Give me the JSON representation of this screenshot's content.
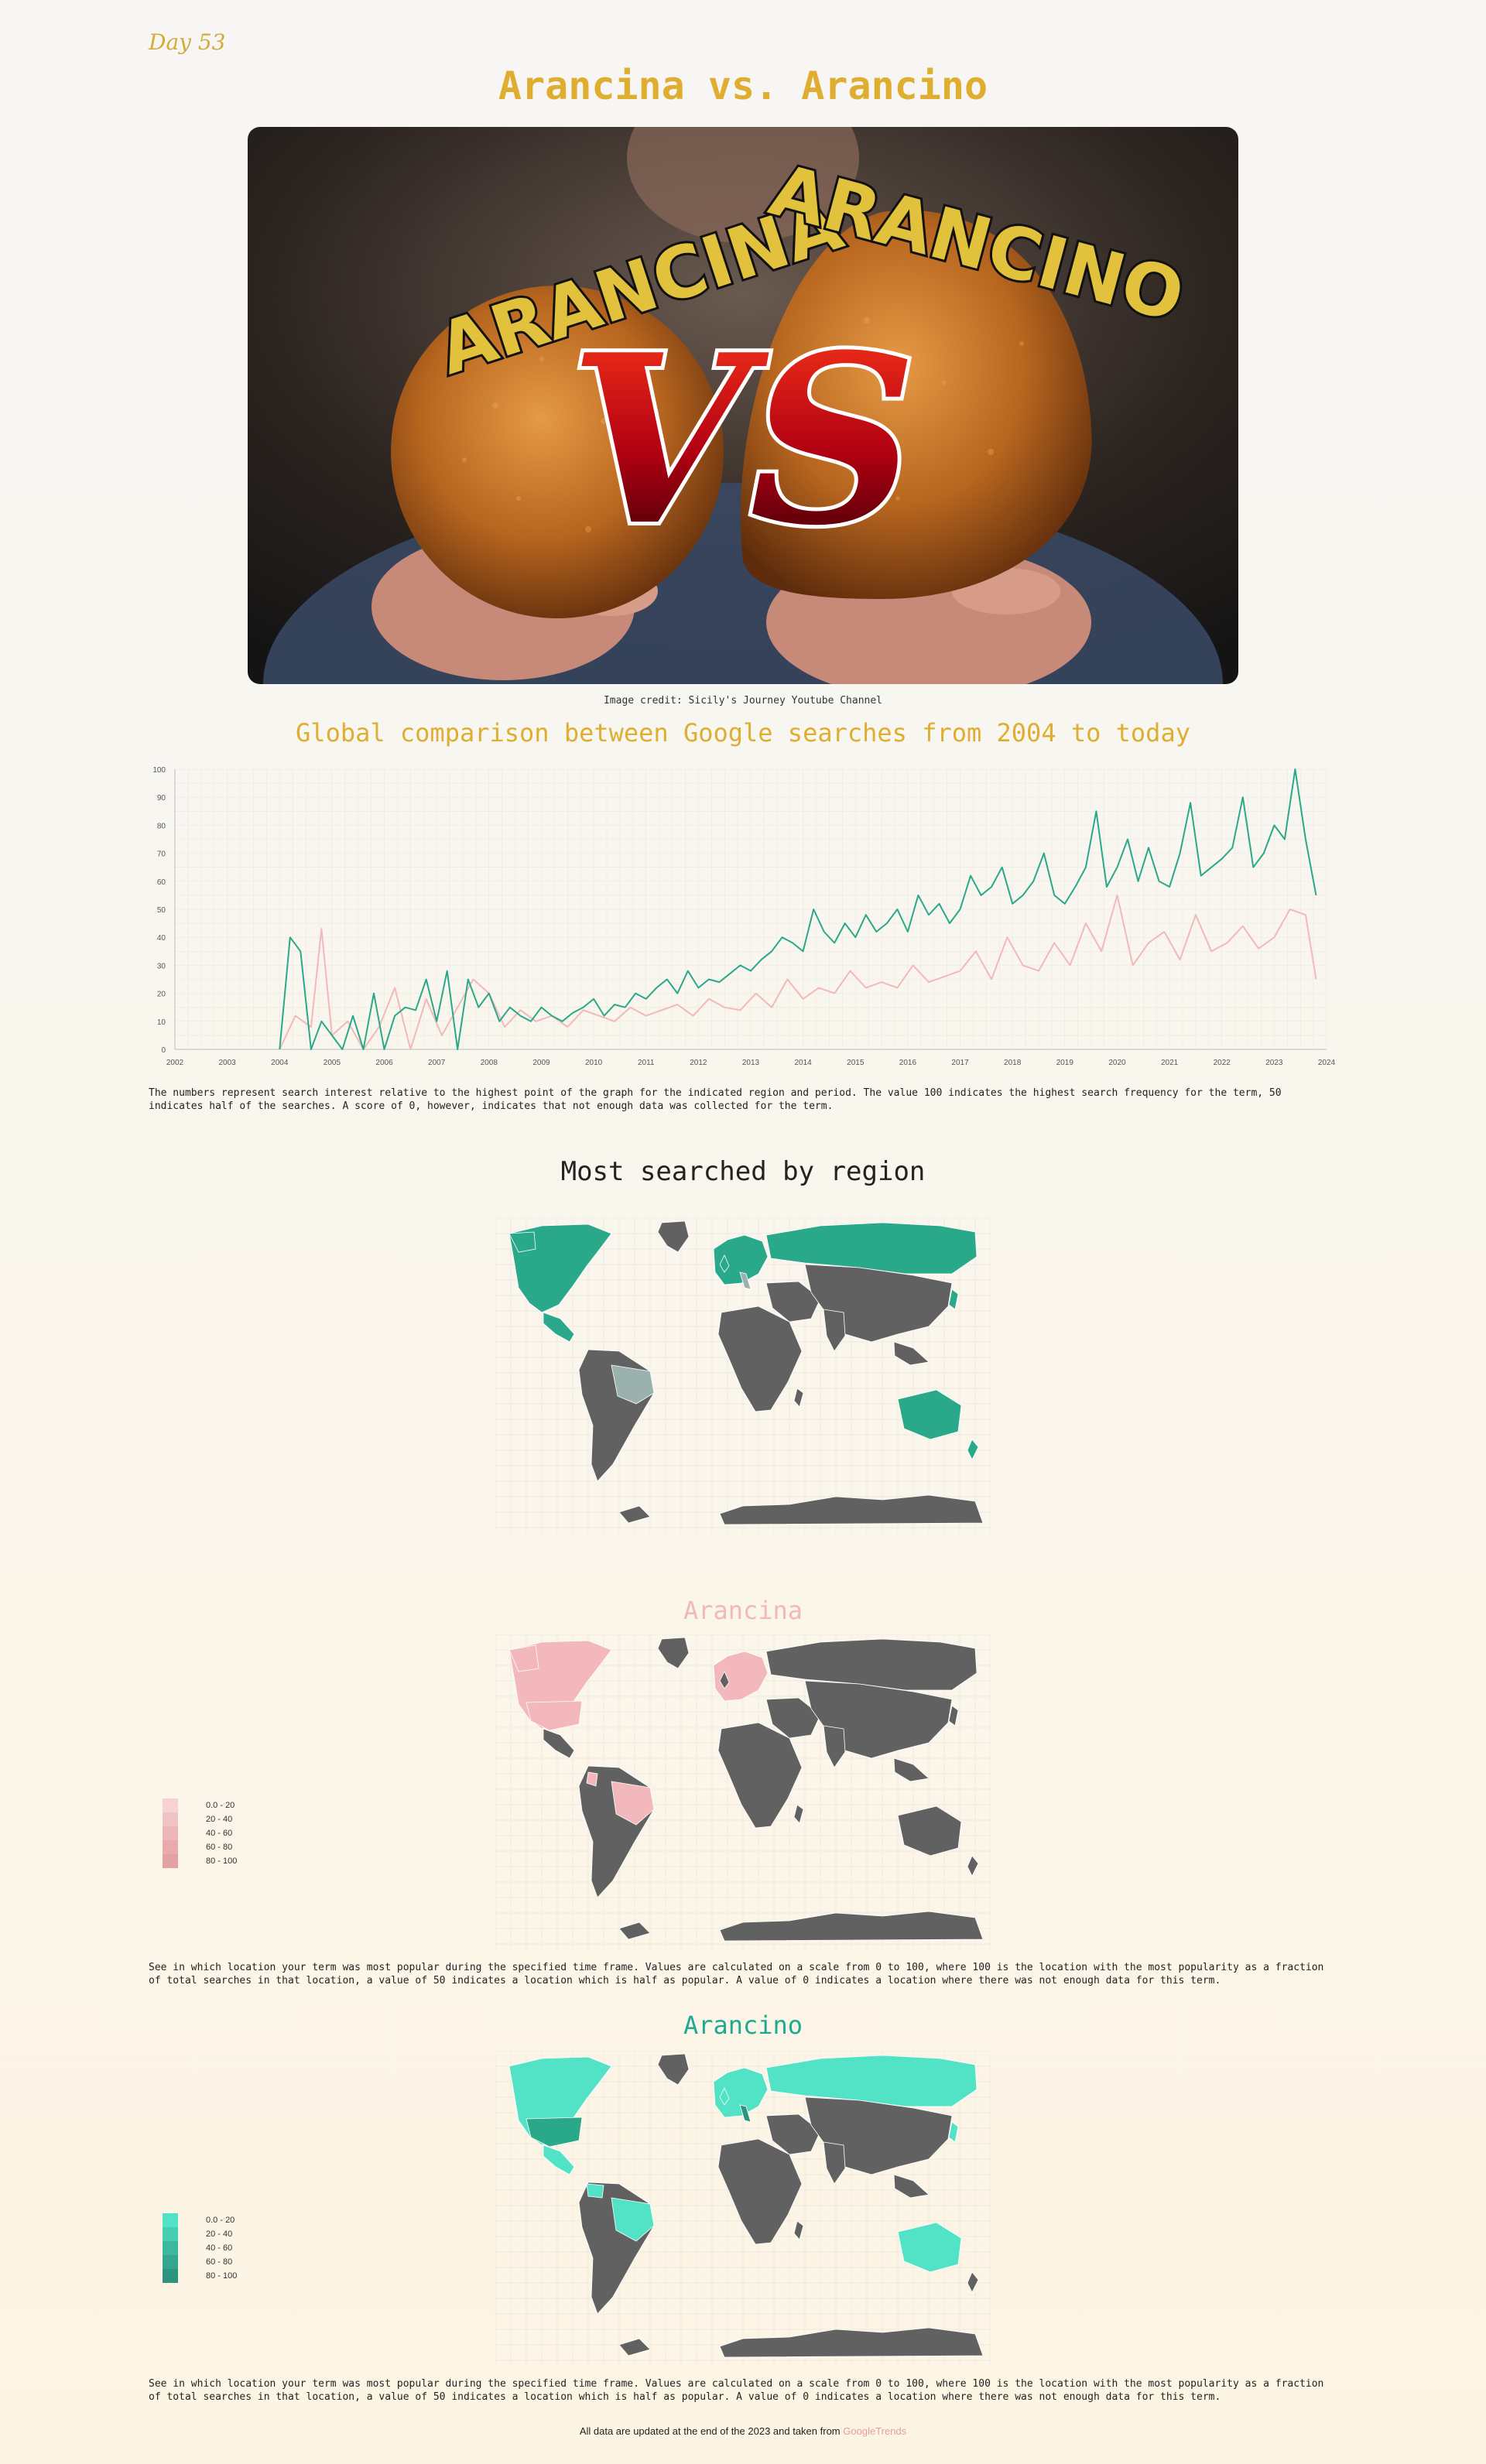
{
  "header": {
    "day": "Day 53",
    "title": "Arancina vs. Arancino"
  },
  "hero": {
    "word_left": "ARANCINA",
    "word_right": "ARANCINO",
    "vs": "VS",
    "credit": "Image credit: Sicily's Journey Youtube Channel"
  },
  "trend": {
    "title": "Global comparison between Google searches from 2004 to today",
    "note": "The numbers represent search interest relative to the highest point of the graph for the indicated region and period. The value 100 indicates the highest search frequency for the term, 50 indicates half of the searches. A score of 0, however, indicates that not enough data was collected for the term."
  },
  "chart_data": {
    "type": "line",
    "title": "Global comparison between Google searches from 2004 to today",
    "xlabel": "",
    "ylabel": "",
    "xlim": [
      2002,
      2024
    ],
    "ylim": [
      0,
      100
    ],
    "x_ticks": [
      "2002",
      "2003",
      "2004",
      "2005",
      "2006",
      "2007",
      "2008",
      "2009",
      "2010",
      "2011",
      "2012",
      "2013",
      "2014",
      "2015",
      "2016",
      "2017",
      "2018",
      "2019",
      "2020",
      "2021",
      "2022",
      "2023",
      "2024"
    ],
    "y_ticks": [
      "0",
      "10",
      "20",
      "30",
      "40",
      "50",
      "60",
      "70",
      "80",
      "90",
      "100"
    ],
    "grid": true,
    "series": [
      {
        "color": "#2aa88a",
        "x": [
          2004.0,
          2004.2,
          2004.4,
          2004.6,
          2004.8,
          2005.0,
          2005.2,
          2005.4,
          2005.6,
          2005.8,
          2006.0,
          2006.2,
          2006.4,
          2006.6,
          2006.8,
          2007.0,
          2007.2,
          2007.4,
          2007.6,
          2007.8,
          2008.0,
          2008.2,
          2008.4,
          2008.6,
          2008.8,
          2009.0,
          2009.2,
          2009.4,
          2009.6,
          2009.8,
          2010.0,
          2010.2,
          2010.4,
          2010.6,
          2010.8,
          2011.0,
          2011.2,
          2011.4,
          2011.6,
          2011.8,
          2012.0,
          2012.2,
          2012.4,
          2012.6,
          2012.8,
          2013.0,
          2013.2,
          2013.4,
          2013.6,
          2013.8,
          2014.0,
          2014.2,
          2014.4,
          2014.6,
          2014.8,
          2015.0,
          2015.2,
          2015.4,
          2015.6,
          2015.8,
          2016.0,
          2016.2,
          2016.4,
          2016.6,
          2016.8,
          2017.0,
          2017.2,
          2017.4,
          2017.6,
          2017.8,
          2018.0,
          2018.2,
          2018.4,
          2018.6,
          2018.8,
          2019.0,
          2019.2,
          2019.4,
          2019.6,
          2019.8,
          2020.0,
          2020.2,
          2020.4,
          2020.6,
          2020.8,
          2021.0,
          2021.2,
          2021.4,
          2021.6,
          2021.8,
          2022.0,
          2022.2,
          2022.4,
          2022.6,
          2022.8,
          2023.0,
          2023.2,
          2023.4,
          2023.6,
          2023.8
        ],
        "y": [
          0,
          40,
          35,
          0,
          10,
          5,
          0,
          12,
          0,
          20,
          0,
          12,
          15,
          14,
          25,
          10,
          28,
          0,
          25,
          15,
          20,
          10,
          15,
          12,
          10,
          15,
          12,
          10,
          13,
          15,
          18,
          12,
          16,
          15,
          20,
          18,
          22,
          25,
          20,
          28,
          22,
          25,
          24,
          27,
          30,
          28,
          32,
          35,
          40,
          38,
          35,
          50,
          42,
          38,
          45,
          40,
          48,
          42,
          45,
          50,
          42,
          55,
          48,
          52,
          45,
          50,
          62,
          55,
          58,
          65,
          52,
          55,
          60,
          70,
          55,
          52,
          58,
          65,
          85,
          58,
          65,
          75,
          60,
          72,
          60,
          58,
          70,
          88,
          62,
          65,
          68,
          72,
          90,
          65,
          70,
          80,
          75,
          100,
          75,
          55
        ]
      },
      {
        "color": "#f2b8bb",
        "x": [
          2004.0,
          2004.3,
          2004.6,
          2004.8,
          2005.0,
          2005.3,
          2005.6,
          2005.9,
          2006.2,
          2006.5,
          2006.8,
          2007.1,
          2007.4,
          2007.7,
          2008.0,
          2008.3,
          2008.6,
          2008.9,
          2009.2,
          2009.5,
          2009.8,
          2010.1,
          2010.4,
          2010.7,
          2011.0,
          2011.3,
          2011.6,
          2011.9,
          2012.2,
          2012.5,
          2012.8,
          2013.1,
          2013.4,
          2013.7,
          2014.0,
          2014.3,
          2014.6,
          2014.9,
          2015.2,
          2015.5,
          2015.8,
          2016.1,
          2016.4,
          2016.7,
          2017.0,
          2017.3,
          2017.6,
          2017.9,
          2018.2,
          2018.5,
          2018.8,
          2019.1,
          2019.4,
          2019.7,
          2020.0,
          2020.3,
          2020.6,
          2020.9,
          2021.2,
          2021.5,
          2021.8,
          2022.1,
          2022.4,
          2022.7,
          2023.0,
          2023.3,
          2023.6,
          2023.8
        ],
        "y": [
          0,
          12,
          8,
          43,
          5,
          10,
          0,
          8,
          22,
          0,
          18,
          5,
          15,
          25,
          20,
          8,
          14,
          10,
          12,
          8,
          14,
          12,
          10,
          15,
          12,
          14,
          16,
          12,
          18,
          15,
          14,
          20,
          15,
          25,
          18,
          22,
          20,
          28,
          22,
          24,
          22,
          30,
          24,
          26,
          28,
          35,
          25,
          40,
          30,
          28,
          38,
          30,
          45,
          35,
          55,
          30,
          38,
          42,
          32,
          48,
          35,
          38,
          44,
          36,
          40,
          50,
          48,
          25
        ]
      }
    ]
  },
  "regions": {
    "title": "Most searched by region",
    "colors": {
      "arancina": "#f2b8bb",
      "arancino": "#2aa88a",
      "tie": "#9bb1ad",
      "no_data": "#616161"
    }
  },
  "arancina_map": {
    "title": "Arancina",
    "legend": [
      "0.0 - 20",
      "20 - 40",
      "40 - 60",
      "60 - 80",
      "80 - 100"
    ],
    "legend_colors": [
      "#f6d2d3",
      "#f2c3c5",
      "#eeb6b8",
      "#eaaaac",
      "#e5a0a3"
    ],
    "note": "See in which location your term was most popular during the specified time frame. Values are calculated on a scale from 0 to 100, where 100 is the location with the most popularity as a fraction of total searches in that location, a value of 50 indicates a location which is half as popular. A value of 0 indicates a location where there was not enough data for this term."
  },
  "arancino_map": {
    "title": "Arancino",
    "legend": [
      "0.0 - 20",
      "20 - 40",
      "40 - 60",
      "60 - 80",
      "80 - 100"
    ],
    "legend_colors": [
      "#52e3c7",
      "#46cdb2",
      "#3db89f",
      "#35a58e",
      "#2e937f"
    ],
    "note": "See in which location your term was most popular during the specified time frame. Values are calculated on a scale from 0 to 100, where 100 is the location with the most popularity as a fraction of total searches in that location, a value of 50 indicates a location which is half as popular. A value of 0 indicates a location where there was not enough data for this term."
  },
  "footer": {
    "text": "All data are updated at the end of the 2023 and taken from",
    "link": "GoogleTrends"
  }
}
